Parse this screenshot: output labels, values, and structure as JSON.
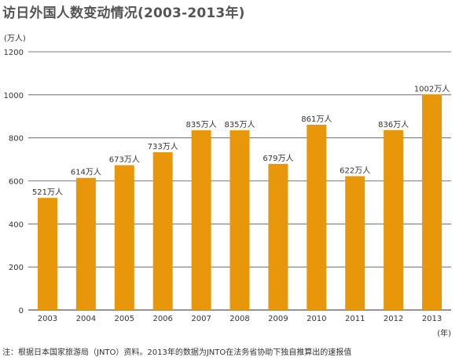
{
  "title": "访日外国人数变动情况(2003-2013年)",
  "unit_y": "(万人)",
  "unit_x": "(年)",
  "note": "注：根据日本国家旅游局（JNTO）资料。2013年的数据为JNTO在法务省协助下独自推算出的速报值",
  "colors": {
    "bar": "#E8960A",
    "grid": "#555555",
    "text": "#333333"
  },
  "chart_data": {
    "type": "bar",
    "categories": [
      "2003",
      "2004",
      "2005",
      "2006",
      "2007",
      "2008",
      "2009",
      "2010",
      "2011",
      "2012",
      "2013"
    ],
    "values": [
      521,
      614,
      673,
      733,
      835,
      835,
      679,
      861,
      622,
      836,
      1002
    ],
    "data_labels": [
      "521万人",
      "614万人",
      "673万人",
      "733万人",
      "835万人",
      "835万人",
      "679万人",
      "861万人",
      "622万人",
      "836万人",
      "1002万人"
    ],
    "y_ticks": [
      0,
      200,
      400,
      600,
      800,
      1000,
      1200
    ],
    "ylim": [
      0,
      1200
    ],
    "grid": true
  }
}
